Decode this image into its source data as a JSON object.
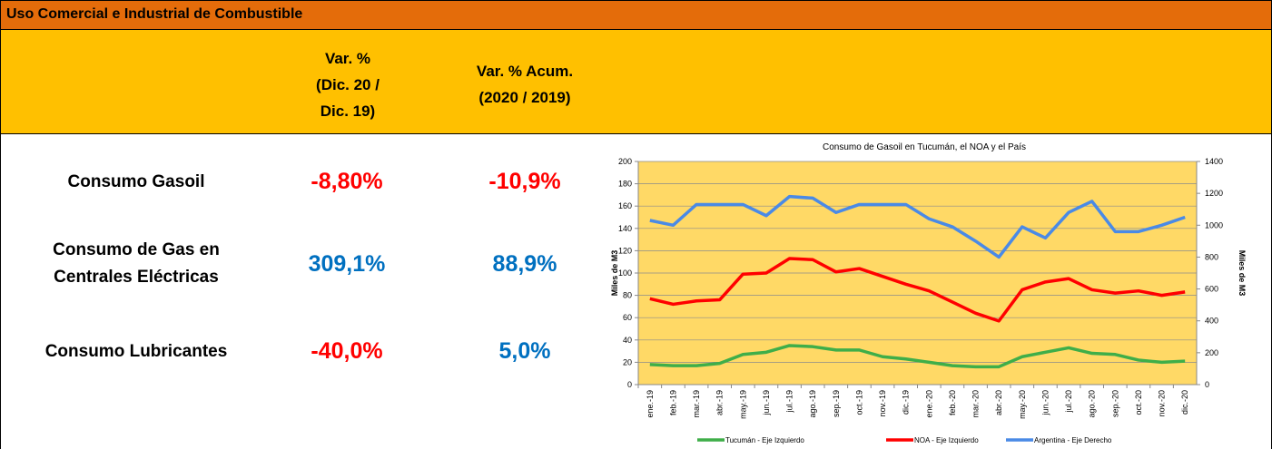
{
  "table": {
    "title": "Uso Comercial e Industrial de Combustible",
    "headers": [
      "Var. %\n(Dic. 20 /\nDic. 19)",
      "Var. % Acum.\n(2020 / 2019)"
    ],
    "rows": [
      [
        "Consumo Gasoil",
        "-8,80%",
        "-10,9%"
      ],
      [
        "Consumo de Gas en\nCentrales Eléctricas",
        "309,1%",
        "88,9%"
      ],
      [
        "Consumo Lubricantes",
        "-40,0%",
        "5,0%"
      ]
    ]
  },
  "chart_data": {
    "type": "line",
    "title": "Consumo de Gasoil en Tucumán, el NOA y el País",
    "ylabel": "Miles de M3",
    "y2label": "Miles de M3",
    "categories": [
      "ene.-19",
      "feb.-19",
      "mar.-19",
      "abr.-19",
      "may.-19",
      "jun.-19",
      "jul.-19",
      "ago.-19",
      "sep.-19",
      "oct.-19",
      "nov.-19",
      "dic.-19",
      "ene.-20",
      "feb.-20",
      "mar.-20",
      "abr.-20",
      "may.-20",
      "jun.-20",
      "jul.-20",
      "ago.-20",
      "sep.-20",
      "oct.-20",
      "nov.-20",
      "dic.-20"
    ],
    "series": [
      {
        "name": "Tucumán - Eje Izquierdo",
        "color": "#3fae49",
        "values": [
          18,
          17,
          17,
          19,
          27,
          29,
          35,
          34,
          31,
          31,
          25,
          23,
          20,
          17,
          16,
          16,
          25,
          29,
          33,
          28,
          27,
          22,
          20,
          21
        ]
      },
      {
        "name": "NOA - Eje Izquierdo",
        "color": "#ff0000",
        "values": [
          77,
          72,
          75,
          76,
          99,
          100,
          113,
          112,
          101,
          104,
          97,
          90,
          84,
          74,
          64,
          57,
          85,
          92,
          95,
          85,
          82,
          84,
          80,
          83
        ]
      },
      {
        "name": "Argentina - Eje Derecho",
        "color": "#4a8ae6",
        "axis": "y2",
        "values": [
          1030,
          1000,
          1130,
          1130,
          1130,
          1060,
          1180,
          1170,
          1080,
          1130,
          1130,
          1130,
          1040,
          990,
          900,
          800,
          990,
          920,
          1080,
          1150,
          960,
          960,
          1000,
          1050
        ]
      }
    ],
    "ylim": [
      0,
      200
    ],
    "yticks": [
      0,
      20,
      40,
      60,
      80,
      100,
      120,
      140,
      160,
      180,
      200
    ],
    "y2lim": [
      0,
      1400
    ],
    "y2ticks": [
      0,
      200,
      400,
      600,
      800,
      1000,
      1200,
      1400
    ],
    "grid": true,
    "legend": "bottom"
  }
}
